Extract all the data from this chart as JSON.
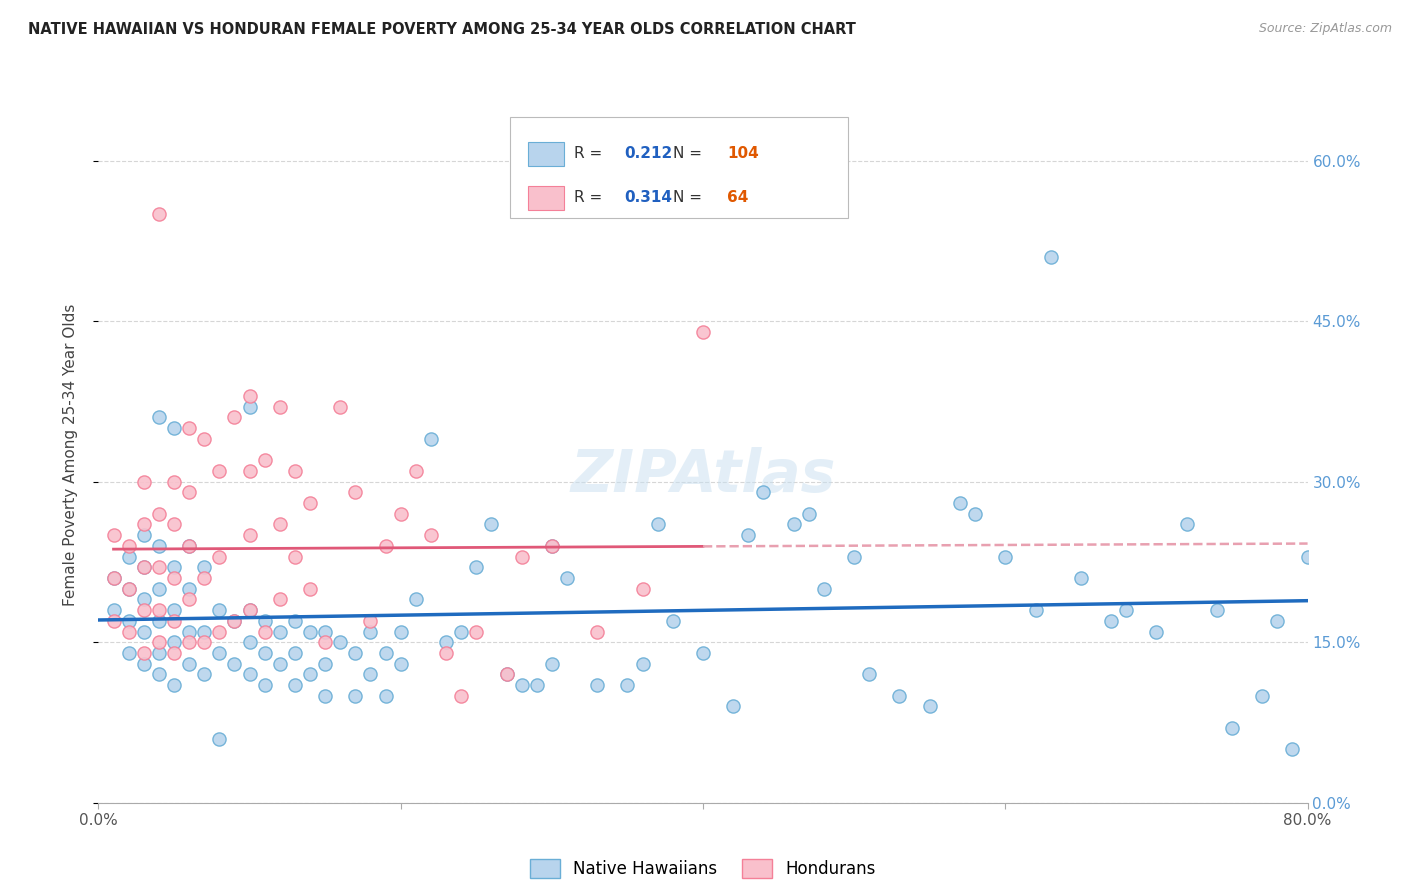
{
  "title": "NATIVE HAWAIIAN VS HONDURAN FEMALE POVERTY AMONG 25-34 YEAR OLDS CORRELATION CHART",
  "source": "Source: ZipAtlas.com",
  "ylabel": "Female Poverty Among 25-34 Year Olds",
  "xlim": [
    0.0,
    0.8
  ],
  "ylim": [
    0.0,
    0.65
  ],
  "xticks": [
    0.0,
    0.2,
    0.4,
    0.6,
    0.8
  ],
  "yticks": [
    0.0,
    0.15,
    0.3,
    0.45,
    0.6
  ],
  "xtick_labels": [
    "0.0%",
    "",
    "",
    "",
    "80.0%"
  ],
  "ytick_labels_right": [
    "0.0%",
    "15.0%",
    "30.0%",
    "45.0%",
    "60.0%"
  ],
  "blue_marker_fill": "#b8d4ed",
  "blue_marker_edge": "#6aaed6",
  "pink_marker_fill": "#f9c0cc",
  "pink_marker_edge": "#f48098",
  "blue_line_color": "#1f6bbf",
  "pink_line_color": "#e05878",
  "pink_dash_color": "#e8a0b0",
  "watermark_color": "#c8dff0",
  "watermark_text": "ZIPAtlas",
  "legend_R_blue": "0.212",
  "legend_N_blue": "104",
  "legend_R_pink": "0.314",
  "legend_N_pink": "64",
  "legend_label_blue": "Native Hawaiians",
  "legend_label_pink": "Hondurans",
  "blue_x": [
    0.01,
    0.01,
    0.02,
    0.02,
    0.02,
    0.02,
    0.03,
    0.03,
    0.03,
    0.03,
    0.03,
    0.04,
    0.04,
    0.04,
    0.04,
    0.04,
    0.04,
    0.05,
    0.05,
    0.05,
    0.05,
    0.05,
    0.06,
    0.06,
    0.06,
    0.06,
    0.07,
    0.07,
    0.07,
    0.08,
    0.08,
    0.08,
    0.09,
    0.09,
    0.1,
    0.1,
    0.1,
    0.1,
    0.11,
    0.11,
    0.11,
    0.12,
    0.12,
    0.13,
    0.13,
    0.13,
    0.14,
    0.14,
    0.15,
    0.15,
    0.15,
    0.16,
    0.17,
    0.17,
    0.18,
    0.18,
    0.19,
    0.19,
    0.2,
    0.2,
    0.21,
    0.22,
    0.23,
    0.24,
    0.25,
    0.26,
    0.27,
    0.28,
    0.29,
    0.3,
    0.3,
    0.31,
    0.33,
    0.35,
    0.36,
    0.37,
    0.38,
    0.4,
    0.42,
    0.43,
    0.44,
    0.46,
    0.47,
    0.48,
    0.5,
    0.51,
    0.53,
    0.55,
    0.57,
    0.58,
    0.6,
    0.62,
    0.63,
    0.65,
    0.67,
    0.68,
    0.7,
    0.72,
    0.74,
    0.75,
    0.77,
    0.78,
    0.79,
    0.8
  ],
  "blue_y": [
    0.18,
    0.21,
    0.14,
    0.17,
    0.2,
    0.23,
    0.13,
    0.16,
    0.19,
    0.22,
    0.25,
    0.12,
    0.14,
    0.17,
    0.2,
    0.24,
    0.36,
    0.11,
    0.15,
    0.18,
    0.22,
    0.35,
    0.13,
    0.16,
    0.2,
    0.24,
    0.12,
    0.16,
    0.22,
    0.14,
    0.18,
    0.06,
    0.13,
    0.17,
    0.12,
    0.15,
    0.18,
    0.37,
    0.11,
    0.14,
    0.17,
    0.13,
    0.16,
    0.11,
    0.14,
    0.17,
    0.12,
    0.16,
    0.1,
    0.13,
    0.16,
    0.15,
    0.1,
    0.14,
    0.12,
    0.16,
    0.1,
    0.14,
    0.13,
    0.16,
    0.19,
    0.34,
    0.15,
    0.16,
    0.22,
    0.26,
    0.12,
    0.11,
    0.11,
    0.13,
    0.24,
    0.21,
    0.11,
    0.11,
    0.13,
    0.26,
    0.17,
    0.14,
    0.09,
    0.25,
    0.29,
    0.26,
    0.27,
    0.2,
    0.23,
    0.12,
    0.1,
    0.09,
    0.28,
    0.27,
    0.23,
    0.18,
    0.51,
    0.21,
    0.17,
    0.18,
    0.16,
    0.26,
    0.18,
    0.07,
    0.1,
    0.17,
    0.05,
    0.23
  ],
  "pink_x": [
    0.01,
    0.01,
    0.01,
    0.02,
    0.02,
    0.02,
    0.03,
    0.03,
    0.03,
    0.03,
    0.03,
    0.04,
    0.04,
    0.04,
    0.04,
    0.04,
    0.05,
    0.05,
    0.05,
    0.05,
    0.05,
    0.06,
    0.06,
    0.06,
    0.06,
    0.06,
    0.07,
    0.07,
    0.07,
    0.08,
    0.08,
    0.08,
    0.09,
    0.09,
    0.1,
    0.1,
    0.1,
    0.1,
    0.11,
    0.11,
    0.12,
    0.12,
    0.12,
    0.13,
    0.13,
    0.14,
    0.14,
    0.15,
    0.16,
    0.17,
    0.18,
    0.19,
    0.2,
    0.21,
    0.22,
    0.23,
    0.24,
    0.25,
    0.27,
    0.28,
    0.3,
    0.33,
    0.36,
    0.4
  ],
  "pink_y": [
    0.17,
    0.21,
    0.25,
    0.16,
    0.2,
    0.24,
    0.14,
    0.18,
    0.22,
    0.26,
    0.3,
    0.15,
    0.18,
    0.22,
    0.27,
    0.55,
    0.14,
    0.17,
    0.21,
    0.26,
    0.3,
    0.15,
    0.19,
    0.24,
    0.29,
    0.35,
    0.15,
    0.21,
    0.34,
    0.16,
    0.23,
    0.31,
    0.17,
    0.36,
    0.18,
    0.25,
    0.31,
    0.38,
    0.16,
    0.32,
    0.19,
    0.26,
    0.37,
    0.23,
    0.31,
    0.2,
    0.28,
    0.15,
    0.37,
    0.29,
    0.17,
    0.24,
    0.27,
    0.31,
    0.25,
    0.14,
    0.1,
    0.16,
    0.12,
    0.23,
    0.24,
    0.16,
    0.2,
    0.44
  ]
}
